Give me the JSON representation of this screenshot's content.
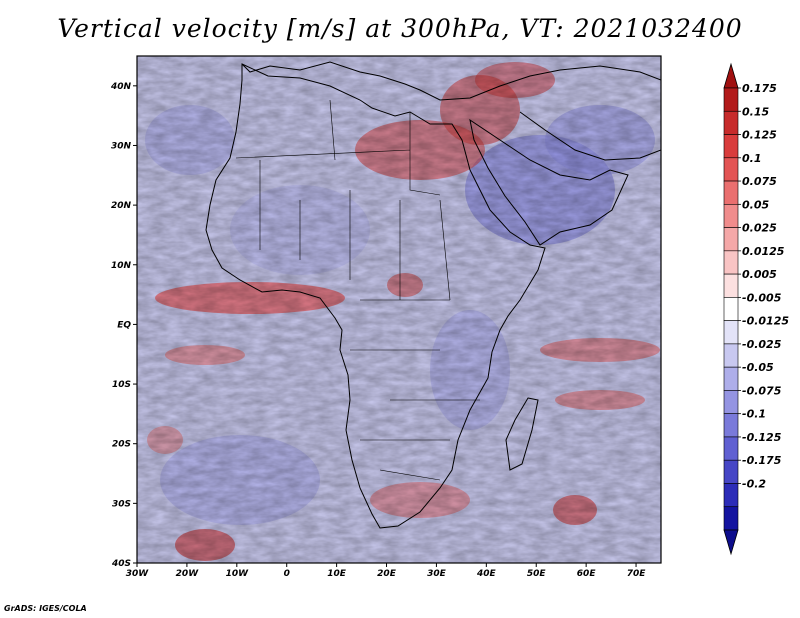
{
  "title": "Vertical velocity [m/s] at 300hPa, VT: 2021032400",
  "credit": "GrADS: IGES/COLA",
  "map": {
    "lon_range": [
      -30,
      75
    ],
    "lat_range": [
      -40,
      45
    ],
    "lon_ticks": [
      {
        "value": -30,
        "label": "30W"
      },
      {
        "value": -20,
        "label": "20W"
      },
      {
        "value": -10,
        "label": "10W"
      },
      {
        "value": 0,
        "label": "0"
      },
      {
        "value": 10,
        "label": "10E"
      },
      {
        "value": 20,
        "label": "20E"
      },
      {
        "value": 30,
        "label": "30E"
      },
      {
        "value": 40,
        "label": "40E"
      },
      {
        "value": 50,
        "label": "50E"
      },
      {
        "value": 60,
        "label": "60E"
      },
      {
        "value": 70,
        "label": "70E"
      }
    ],
    "lat_ticks": [
      {
        "value": 40,
        "label": "40N"
      },
      {
        "value": 30,
        "label": "30N"
      },
      {
        "value": 20,
        "label": "20N"
      },
      {
        "value": 10,
        "label": "10N"
      },
      {
        "value": 0,
        "label": "EQ"
      },
      {
        "value": -10,
        "label": "10S"
      },
      {
        "value": -20,
        "label": "20S"
      },
      {
        "value": -30,
        "label": "30S"
      },
      {
        "value": -40,
        "label": "40S"
      }
    ]
  },
  "colorbar": {
    "labels": [
      "0.175",
      "0.15",
      "0.125",
      "0.1",
      "0.075",
      "0.05",
      "0.025",
      "0.0125",
      "0.005",
      "-0.005",
      "-0.0125",
      "-0.025",
      "-0.05",
      "-0.075",
      "-0.1",
      "-0.125",
      "-0.175",
      "-0.2"
    ],
    "colors": [
      "#b21a1a",
      "#c72b2b",
      "#d93c3c",
      "#e35454",
      "#ea6f6f",
      "#f08c8c",
      "#f5a8a8",
      "#f9c4c4",
      "#fce0e0",
      "#ffffff",
      "#e3e3f8",
      "#c8c8f0",
      "#aeaeea",
      "#9494e2",
      "#7a7ada",
      "#6060d2",
      "#4646c6",
      "#2c2cb8",
      "#1414a0"
    ],
    "tip_top_color": "#a01010",
    "tip_bottom_color": "#0d0d8c"
  }
}
